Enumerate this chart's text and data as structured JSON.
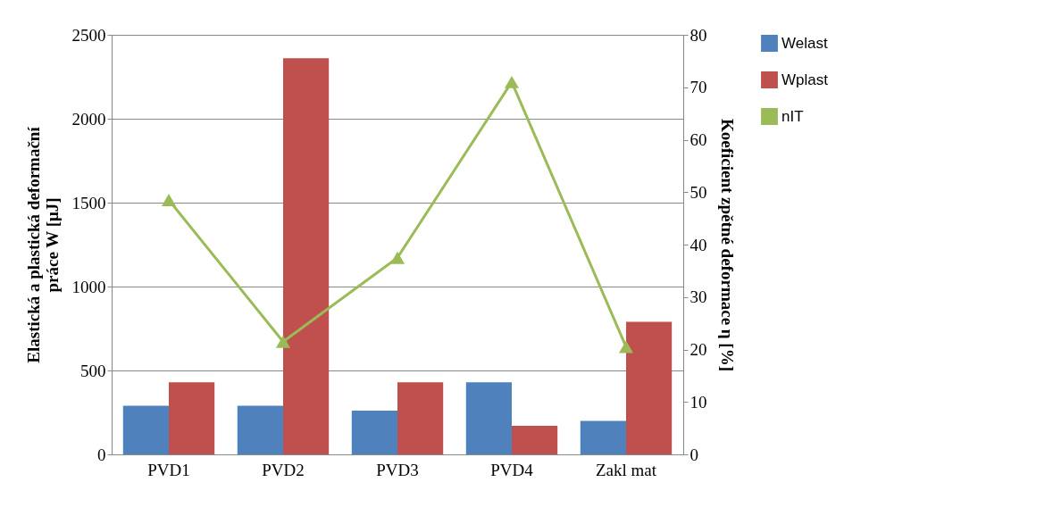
{
  "chart_data": {
    "type": "bar",
    "categories": [
      "PVD1",
      "PVD2",
      "PVD3",
      "PVD4",
      "Zakl mat"
    ],
    "ylabel": "Elastická a plastická deformační\npráce W [μJ]",
    "y2label": "Koeficient zpětné deformace η [%]",
    "series": [
      {
        "name": "Welast",
        "color": "#4f81bd",
        "values": [
          290,
          290,
          260,
          430,
          200
        ]
      },
      {
        "name": "Wplast",
        "color": "#c0504d",
        "values": [
          430,
          2360,
          430,
          170,
          790
        ]
      },
      {
        "name": "nIT",
        "type": "line",
        "axis": "y2",
        "color": "#9bbb59",
        "marker": "triangle",
        "values": [
          48.5,
          21.5,
          37.5,
          71,
          20.5
        ]
      }
    ],
    "ylim": [
      0,
      2500
    ],
    "yticks": [
      0,
      500,
      1000,
      1500,
      2000,
      2500
    ],
    "y2lim": [
      0,
      80
    ],
    "y2ticks": [
      0,
      10,
      20,
      30,
      40,
      50,
      60,
      70,
      80
    ],
    "grid": "y",
    "legend": "right"
  }
}
